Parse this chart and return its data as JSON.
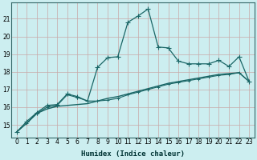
{
  "xlabel": "Humidex (Indice chaleur)",
  "ylabel": "",
  "xlim": [
    -0.5,
    23.5
  ],
  "ylim": [
    14.3,
    21.9
  ],
  "bg_color": "#cceef0",
  "grid_color": "#d9b0b0",
  "line_color": "#1a6666",
  "xticks": [
    0,
    1,
    2,
    3,
    4,
    5,
    6,
    7,
    8,
    9,
    10,
    11,
    12,
    13,
    14,
    15,
    16,
    17,
    18,
    19,
    20,
    21,
    22,
    23
  ],
  "yticks": [
    15,
    16,
    17,
    18,
    19,
    20,
    21
  ],
  "line1_x": [
    0,
    1,
    2,
    3,
    4,
    5,
    6,
    7,
    8,
    9,
    10,
    11,
    12,
    13,
    14,
    15,
    16,
    17,
    18,
    19,
    20,
    21,
    22,
    23
  ],
  "line1_y": [
    14.6,
    15.2,
    15.7,
    16.1,
    16.15,
    16.75,
    16.6,
    16.35,
    18.25,
    18.8,
    18.85,
    20.8,
    21.15,
    21.55,
    19.4,
    19.35,
    18.6,
    18.45,
    18.45,
    18.45,
    18.65,
    18.3,
    18.85,
    17.45
  ],
  "line2_x": [
    0,
    1,
    2,
    3,
    4,
    5,
    6,
    7,
    8,
    9,
    10,
    11,
    12,
    13,
    14,
    15,
    16,
    17,
    18,
    19,
    20,
    21,
    22,
    23
  ],
  "line2_y": [
    14.6,
    15.1,
    15.65,
    15.9,
    16.05,
    16.1,
    16.15,
    16.2,
    16.35,
    16.5,
    16.6,
    16.75,
    16.9,
    17.05,
    17.2,
    17.35,
    17.45,
    17.55,
    17.65,
    17.75,
    17.85,
    17.9,
    17.95,
    17.45
  ],
  "line3_x": [
    0,
    1,
    2,
    3,
    4,
    5,
    6,
    7,
    8,
    9,
    10,
    11,
    12,
    13,
    14,
    15,
    16,
    17,
    18,
    19,
    20,
    21,
    22,
    23
  ],
  "line3_y": [
    14.6,
    15.1,
    15.65,
    16.0,
    16.1,
    16.7,
    16.55,
    16.35,
    16.35,
    16.4,
    16.5,
    16.7,
    16.85,
    17.0,
    17.15,
    17.3,
    17.4,
    17.5,
    17.6,
    17.7,
    17.8,
    17.85,
    17.95,
    17.45
  ]
}
